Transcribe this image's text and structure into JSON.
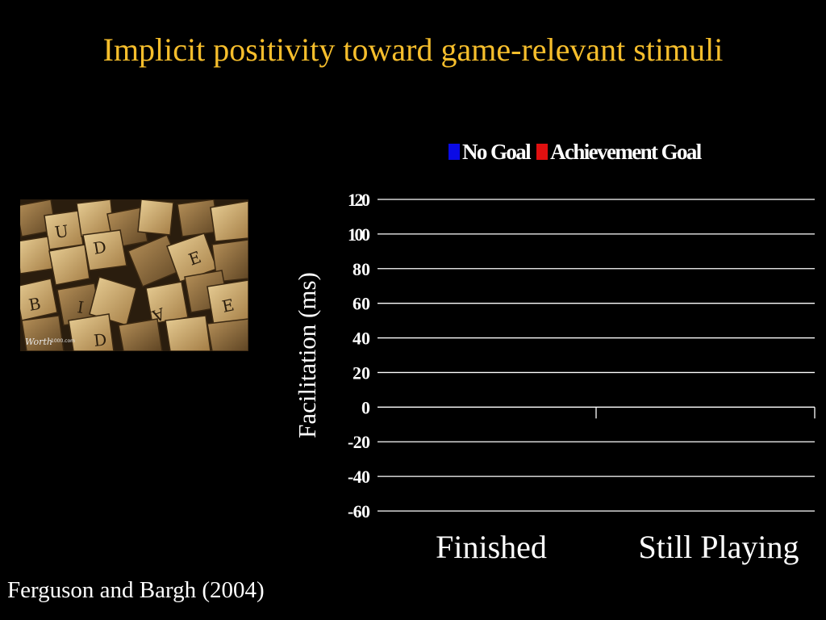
{
  "slide": {
    "title": "Implicit positivity toward game-relevant stimuli",
    "citation": "Ferguson and Bargh (2004)",
    "photo_watermark": "Worth1000.com",
    "title_color": "#f6be2c",
    "background_color": "#000000"
  },
  "chart_data": {
    "type": "bar",
    "title": "",
    "xlabel": "",
    "ylabel": "Facilitation (ms)",
    "categories": [
      "Finished",
      "Still Playing"
    ],
    "series": [
      {
        "name": "No Goal",
        "color": "#0a0ae6",
        "values": [
          null,
          null
        ]
      },
      {
        "name": "Achievement Goal",
        "color": "#e01010",
        "values": [
          null,
          null
        ]
      }
    ],
    "ylim": [
      -60,
      120
    ],
    "yticks": [
      120,
      100,
      80,
      60,
      40,
      20,
      0,
      -20,
      -40,
      -60
    ],
    "grid": true,
    "legend_position": "top"
  }
}
